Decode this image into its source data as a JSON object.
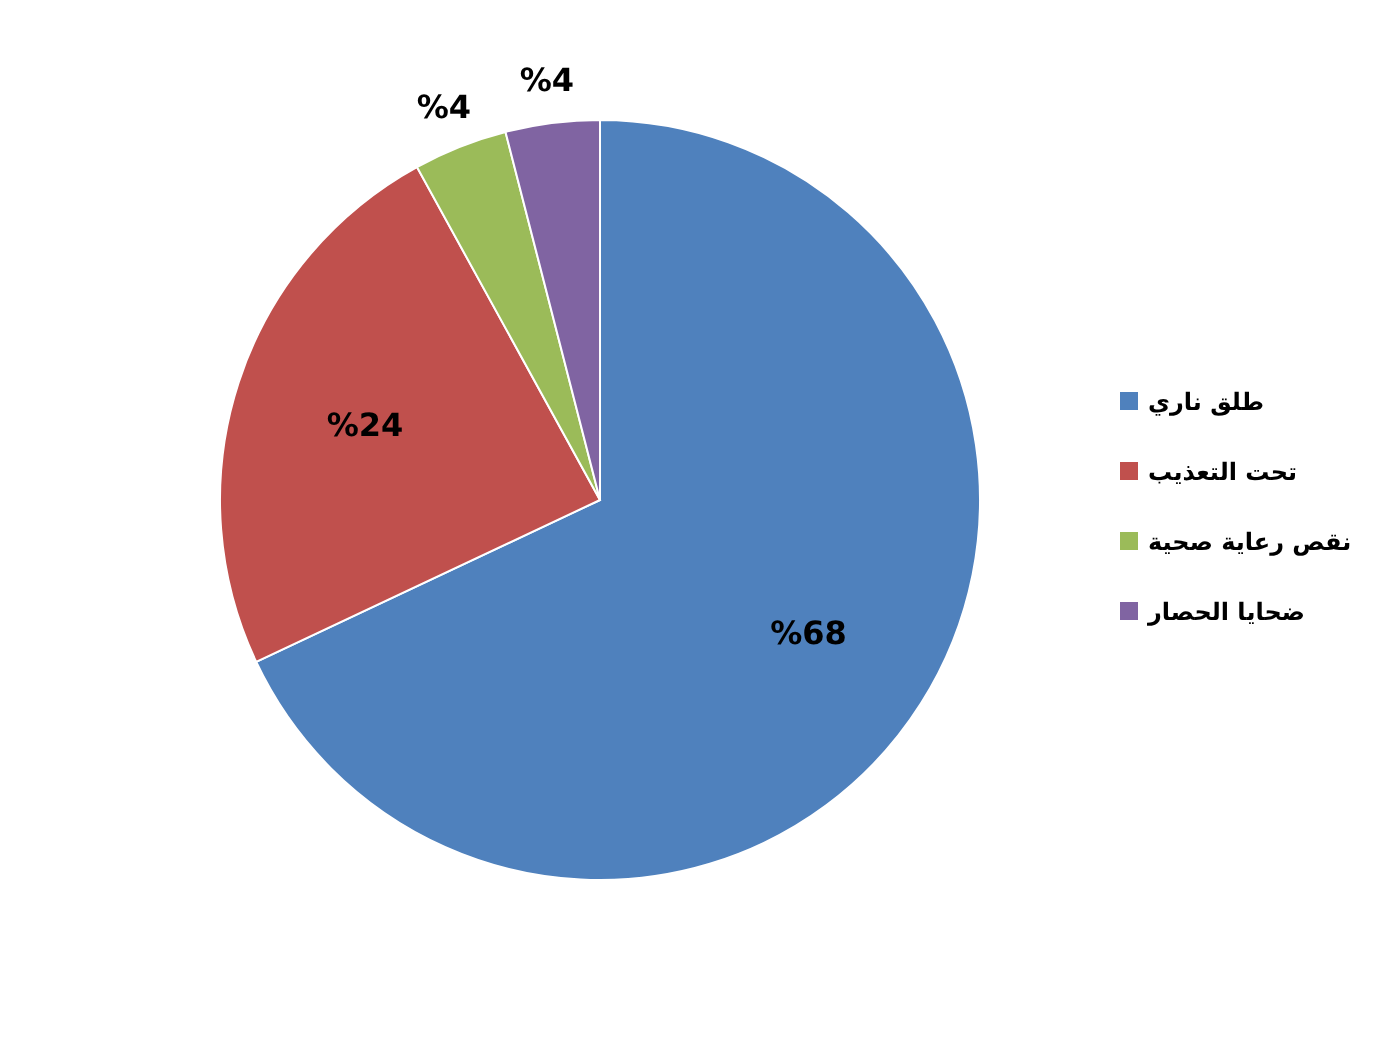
{
  "chart_data": {
    "type": "pie",
    "categories": [
      "طلق ناري",
      "تحت التعذيب",
      "نقص رعاية صحية",
      "ضحايا الحصار"
    ],
    "values": [
      68,
      24,
      4,
      4
    ],
    "colors": [
      "#4f81bd",
      "#c0504d",
      "#9bbb59",
      "#8064a2"
    ],
    "value_labels": [
      "%68",
      "%24",
      "%4",
      "%4"
    ],
    "legend": "right"
  }
}
